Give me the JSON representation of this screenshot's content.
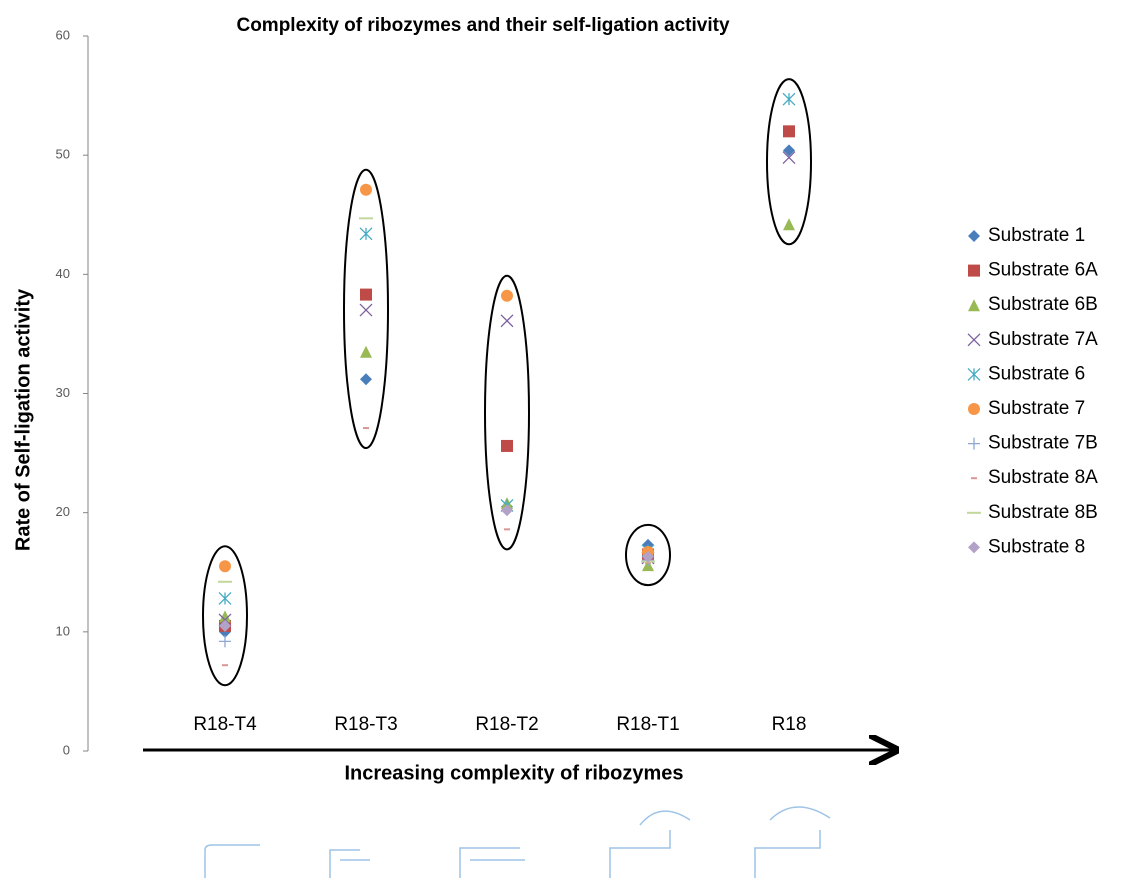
{
  "chart_data": {
    "type": "scatter",
    "title": "Complexity of ribozymes and their self-ligation activity",
    "y_label": "Rate of Self-ligation activity",
    "x_label": "Increasing complexity of ribozymes",
    "categories": [
      "R18-T4",
      "R18-T3",
      "R18-T2",
      "R18-T1",
      "R18"
    ],
    "ylim": [
      0,
      60
    ],
    "yticks": [
      0,
      10,
      20,
      30,
      40,
      50,
      60
    ],
    "series": [
      {
        "name": "Substrate 1",
        "color": "#4a7ebb",
        "marker": "diamond",
        "values": [
          10.0,
          31.2,
          20.5,
          17.3,
          50.4
        ]
      },
      {
        "name": "Substrate 6A",
        "color": "#be4b48",
        "marker": "square",
        "values": [
          10.5,
          38.3,
          25.6,
          16.5,
          52.0
        ]
      },
      {
        "name": "Substrate 6B",
        "color": "#98b954",
        "marker": "triangle",
        "values": [
          11.3,
          33.5,
          20.8,
          15.6,
          44.2
        ]
      },
      {
        "name": "Substrate 7A",
        "color": "#7d60a0",
        "marker": "x",
        "values": [
          11.0,
          37.0,
          36.1,
          16.2,
          49.8
        ]
      },
      {
        "name": "Substrate 6",
        "color": "#46aac5",
        "marker": "star",
        "values": [
          12.8,
          43.4,
          20.6,
          16.8,
          54.7
        ]
      },
      {
        "name": "Substrate 7",
        "color": "#f79646",
        "marker": "circle",
        "values": [
          15.5,
          47.1,
          38.2,
          16.7,
          null
        ]
      },
      {
        "name": "Substrate 7B",
        "color": "#8ea8d3",
        "marker": "plus",
        "values": [
          9.2,
          null,
          null,
          16.0,
          null
        ]
      },
      {
        "name": "Substrate 8A",
        "color": "#d99694",
        "marker": "dash",
        "values": [
          7.2,
          27.1,
          18.6,
          15.8,
          null
        ]
      },
      {
        "name": "Substrate 8B",
        "color": "#c3d69b",
        "marker": "longdash",
        "values": [
          14.2,
          44.7,
          null,
          15.9,
          null
        ]
      },
      {
        "name": "Substrate 8",
        "color": "#b3a2c7",
        "marker": "diamond",
        "values": [
          10.5,
          null,
          20.2,
          16.3,
          null
        ]
      }
    ]
  }
}
